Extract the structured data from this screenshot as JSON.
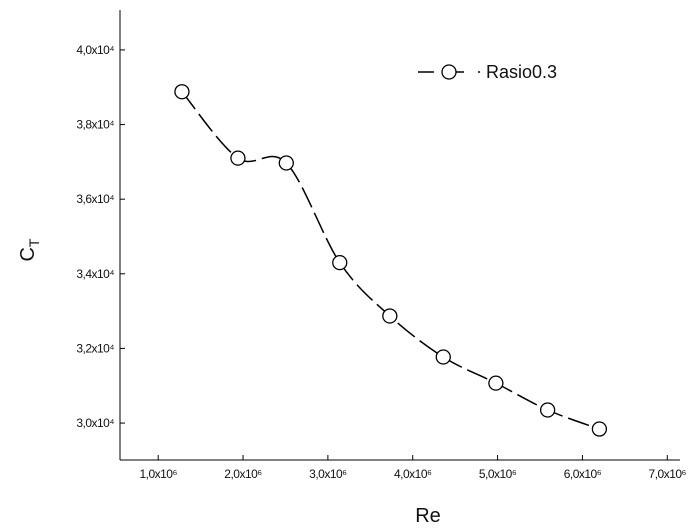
{
  "chart_data": {
    "type": "line",
    "xlabel": "Re",
    "ylabel": "C",
    "ylabel_subscript": "T",
    "series": [
      {
        "name": "Rasio0.3",
        "color": "#000000",
        "x": [
          1280000,
          1940000,
          2510000,
          3140000,
          3730000,
          4360000,
          4980000,
          5590000,
          6200000
        ],
        "values": [
          38880,
          37100,
          36970,
          34300,
          32870,
          31770,
          31070,
          30350,
          29840
        ]
      }
    ],
    "xlim": [
      550000,
      7150000
    ],
    "xticks": [
      {
        "value": 1000000,
        "label": "1,0x10⁶"
      },
      {
        "value": 2000000,
        "label": "2,0x10⁶"
      },
      {
        "value": 3000000,
        "label": "3,0x10⁶"
      },
      {
        "value": 4000000,
        "label": "4,0x10⁶"
      },
      {
        "value": 5000000,
        "label": "5,0x10⁶"
      },
      {
        "value": 6000000,
        "label": "6,0x10⁶"
      },
      {
        "value": 7000000,
        "label": "7,0x10⁶"
      }
    ],
    "ylim": [
      29010,
      41070
    ],
    "yticks": [
      {
        "value": 30000,
        "label": "3,0x10⁴"
      },
      {
        "value": 32000,
        "label": "3,2x10⁴"
      },
      {
        "value": 34000,
        "label": "3,4x10⁴"
      },
      {
        "value": 36000,
        "label": "3,6x10⁴"
      },
      {
        "value": 38000,
        "label": "3,8x10⁴"
      },
      {
        "value": 40000,
        "label": "4,0x10⁴"
      }
    ],
    "grid": false,
    "legend": "upper right"
  }
}
